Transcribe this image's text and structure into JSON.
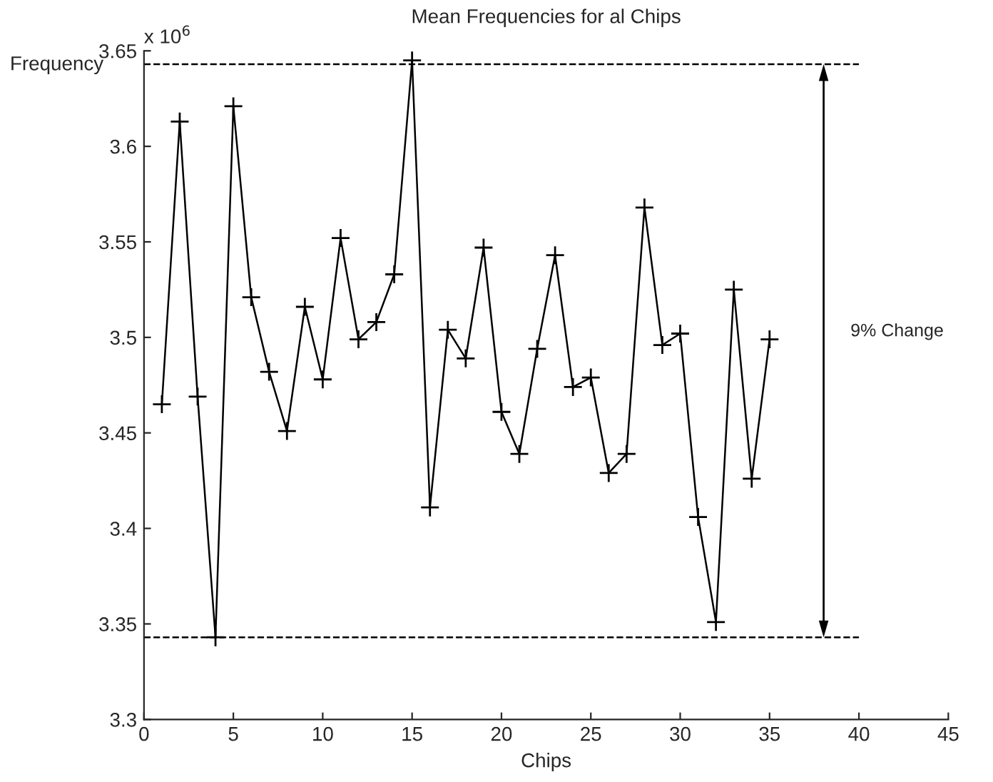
{
  "chart_data": {
    "type": "line",
    "title": "Mean Frequencies for al Chips",
    "xlabel": "Chips",
    "ylabel": "Frequency",
    "x": [
      1,
      2,
      3,
      4,
      5,
      6,
      7,
      8,
      9,
      10,
      11,
      12,
      13,
      14,
      15,
      16,
      17,
      18,
      19,
      20,
      21,
      22,
      23,
      24,
      25,
      26,
      27,
      28,
      29,
      30,
      31,
      32,
      33,
      34,
      35
    ],
    "series": [
      {
        "color": "#000000",
        "values": [
          3.465,
          3.613,
          3.469,
          3.343,
          3.621,
          3.521,
          3.482,
          3.451,
          3.516,
          3.478,
          3.552,
          3.499,
          3.508,
          3.533,
          3.645,
          3.411,
          3.504,
          3.489,
          3.547,
          3.461,
          3.439,
          3.494,
          3.543,
          3.474,
          3.479,
          3.429,
          3.439,
          3.568,
          3.496,
          3.502,
          3.406,
          3.351,
          3.525,
          3.426,
          3.499
        ]
      }
    ],
    "marker": "cross",
    "line_style": "solid",
    "grid": false,
    "xlim": [
      0,
      45
    ],
    "xticks": [
      0,
      5,
      10,
      15,
      20,
      25,
      30,
      35,
      40,
      45
    ],
    "ylim": [
      3.3,
      3.65
    ],
    "yticks": [
      3.3,
      3.35,
      3.4,
      3.45,
      3.5,
      3.55,
      3.6,
      3.65
    ],
    "ref_lines": [
      {
        "axis": "y",
        "value": 3.643,
        "color": "#000000",
        "line_style": "dashed"
      },
      {
        "axis": "y",
        "value": 3.343,
        "color": "#000000",
        "line_style": "dashed"
      }
    ],
    "annotations": [
      {
        "text": "x 10$^{6}$"
      },
      {
        "text": "9% Change"
      }
    ]
  }
}
